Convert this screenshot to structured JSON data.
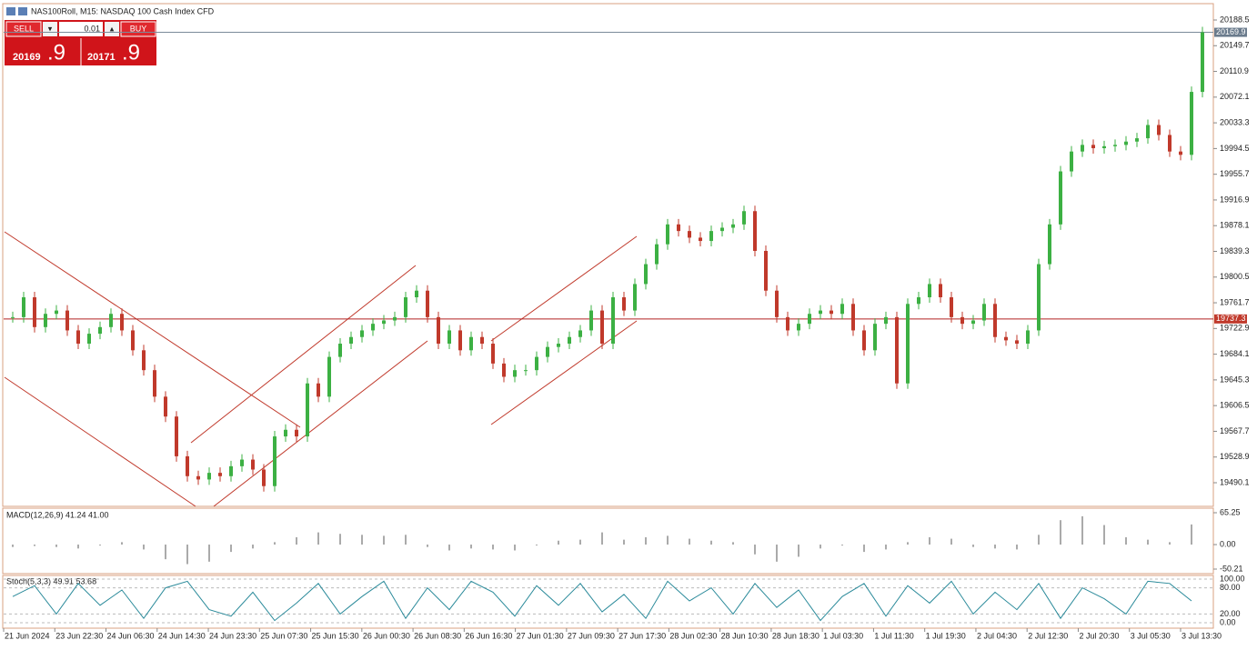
{
  "header": {
    "title": "NAS100Roll, M15:  NASDAQ 100 Cash Index CFD"
  },
  "trade_panel": {
    "sell_label": "SELL",
    "buy_label": "BUY",
    "lot": "0.01",
    "sell_price": {
      "main": "20169",
      "fraction": ".9"
    },
    "buy_price": {
      "main": "20171",
      "fraction": ".9"
    }
  },
  "main_chart": {
    "price_ticks": [
      20188.5,
      20149.7,
      20110.9,
      20072.1,
      20033.3,
      19994.5,
      19955.7,
      19916.9,
      19878.1,
      19839.3,
      19800.5,
      19761.7,
      19722.9,
      19684.1,
      19645.3,
      19606.5,
      19567.7,
      19528.9,
      19490.1
    ],
    "current_price": 20169.9,
    "level_line": 19737.3,
    "closes": [
      19740,
      19770,
      19725,
      19745,
      19750,
      19720,
      19700,
      19715,
      19725,
      19745,
      19720,
      19690,
      19660,
      19620,
      19590,
      19530,
      19500,
      19495,
      19505,
      19500,
      19515,
      19525,
      19510,
      19485,
      19560,
      19570,
      19560,
      19640,
      19620,
      19680,
      19700,
      19710,
      19720,
      19730,
      19735,
      19740,
      19770,
      19780,
      19740,
      19700,
      19720,
      19690,
      19710,
      19700,
      19670,
      19650,
      19660,
      19660,
      19680,
      19695,
      19700,
      19710,
      19720,
      19750,
      19700,
      19770,
      19750,
      19790,
      19820,
      19850,
      19880,
      19870,
      19860,
      19855,
      19870,
      19875,
      19880,
      19900,
      19840,
      19780,
      19740,
      19720,
      19730,
      19745,
      19750,
      19745,
      19760,
      19720,
      19690,
      19730,
      19740,
      19640,
      19760,
      19770,
      19790,
      19770,
      19740,
      19730,
      19735,
      19760,
      19710,
      19705,
      19700,
      19720,
      19820,
      19880,
      19960,
      19990,
      20000,
      19995,
      19998,
      20000,
      20005,
      20010,
      20030,
      20015,
      19990,
      19985,
      20080,
      20169.9
    ]
  },
  "macd_panel": {
    "title": "MACD(12,26,9) 41.24 41.00",
    "ticks": [
      65.25,
      {
        "value": 0,
        "label": "0.00"
      },
      -50.21
    ],
    "values": [
      -5,
      -3,
      -5,
      -8,
      -2,
      5,
      -10,
      -30,
      -40,
      -35,
      -15,
      -8,
      5,
      15,
      25,
      22,
      20,
      18,
      20,
      -5,
      -12,
      -8,
      -10,
      -12,
      0,
      8,
      10,
      25,
      10,
      15,
      18,
      12,
      8,
      5,
      -20,
      -35,
      -25,
      -8,
      -2,
      -15,
      -10,
      5,
      15,
      12,
      -5,
      -8,
      -10,
      20,
      50,
      58,
      40,
      15,
      10,
      5,
      41.24
    ]
  },
  "stoch_panel": {
    "title": "Stoch(5,3,3) 49.91 53.68",
    "ticks": [
      {
        "value": 100,
        "label": "100.00"
      },
      {
        "value": 80,
        "label": "80.00"
      },
      {
        "value": 20,
        "label": "20.00"
      },
      {
        "value": 0,
        "label": "0.00"
      }
    ],
    "values": [
      60,
      85,
      20,
      90,
      40,
      75,
      10,
      80,
      95,
      30,
      15,
      70,
      5,
      45,
      90,
      20,
      60,
      95,
      10,
      80,
      30,
      95,
      70,
      15,
      85,
      40,
      90,
      25,
      65,
      10,
      95,
      50,
      80,
      20,
      90,
      35,
      75,
      5,
      60,
      90,
      15,
      85,
      45,
      95,
      20,
      70,
      30,
      90,
      10,
      80,
      55,
      20,
      95,
      90,
      49.91
    ]
  },
  "time_axis": [
    "21 Jun 2024",
    "23 Jun 22:30",
    "24 Jun 06:30",
    "24 Jun 14:30",
    "24 Jun 23:30",
    "25 Jun 07:30",
    "25 Jun 15:30",
    "26 Jun 00:30",
    "26 Jun 08:30",
    "26 Jun 16:30",
    "27 Jun 01:30",
    "27 Jun 09:30",
    "27 Jun 17:30",
    "28 Jun 02:30",
    "28 Jun 10:30",
    "28 Jun 18:30",
    "1 Jul 03:30",
    "1 Jul 11:30",
    "1 Jul 19:30",
    "2 Jul 04:30",
    "2 Jul 12:30",
    "2 Jul 20:30",
    "3 Jul 05:30",
    "3 Jul 13:30"
  ]
}
